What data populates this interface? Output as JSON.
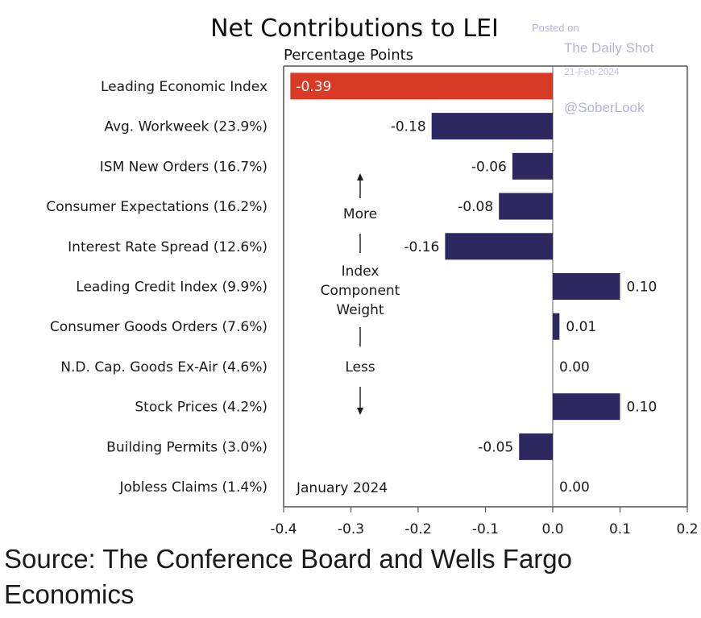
{
  "header": {
    "title": "Net Contributions to LEI",
    "subtitle": "Percentage Points"
  },
  "watermark": {
    "posted_on": "Posted on",
    "site": "The Daily Shot",
    "date": "21-Feb-2024",
    "handle": "@SoberLook"
  },
  "annotation": {
    "more": "More",
    "weight_line1": "Index",
    "weight_line2": "Component",
    "weight_line3": "Weight",
    "less": "Less",
    "period": "January 2024"
  },
  "footer": {
    "source": "Source: The Conference Board and Wells Fargo Economics"
  },
  "chart_data": {
    "type": "bar",
    "orientation": "horizontal",
    "title": "Net Contributions to LEI",
    "subtitle": "Percentage Points",
    "categories": [
      "Leading Economic Index",
      "Avg. Workweek (23.9%)",
      "ISM New Orders (16.7%)",
      "Consumer Expectations (16.2%)",
      "Interest Rate Spread (12.6%)",
      "Leading Credit Index (9.9%)",
      "Consumer Goods Orders (7.6%)",
      "N.D. Cap. Goods Ex-Air (4.6%)",
      "Stock Prices (4.2%)",
      "Building Permits (3.0%)",
      "Jobless Claims (1.4%)"
    ],
    "values": [
      -0.39,
      -0.18,
      -0.06,
      -0.08,
      -0.16,
      0.1,
      0.01,
      0.0,
      0.1,
      -0.05,
      0.0
    ],
    "data_labels": [
      "-0.39",
      "-0.18",
      "-0.06",
      "-0.08",
      "-0.16",
      "0.10",
      "0.01",
      "0.00",
      "0.10",
      "-0.05",
      "0.00"
    ],
    "xlim": [
      -0.4,
      0.2
    ],
    "xticks": [
      -0.4,
      -0.3,
      -0.2,
      -0.1,
      0.0,
      0.1,
      0.2
    ],
    "xtick_labels": [
      "-0.4",
      "-0.3",
      "-0.2",
      "-0.1",
      "0.0",
      "0.1",
      "0.2"
    ],
    "colors": {
      "highlight": "#d93a26",
      "bar": "#2e2860",
      "highlight_label": "#ffffff",
      "axis": "#555555"
    },
    "grid": false
  }
}
